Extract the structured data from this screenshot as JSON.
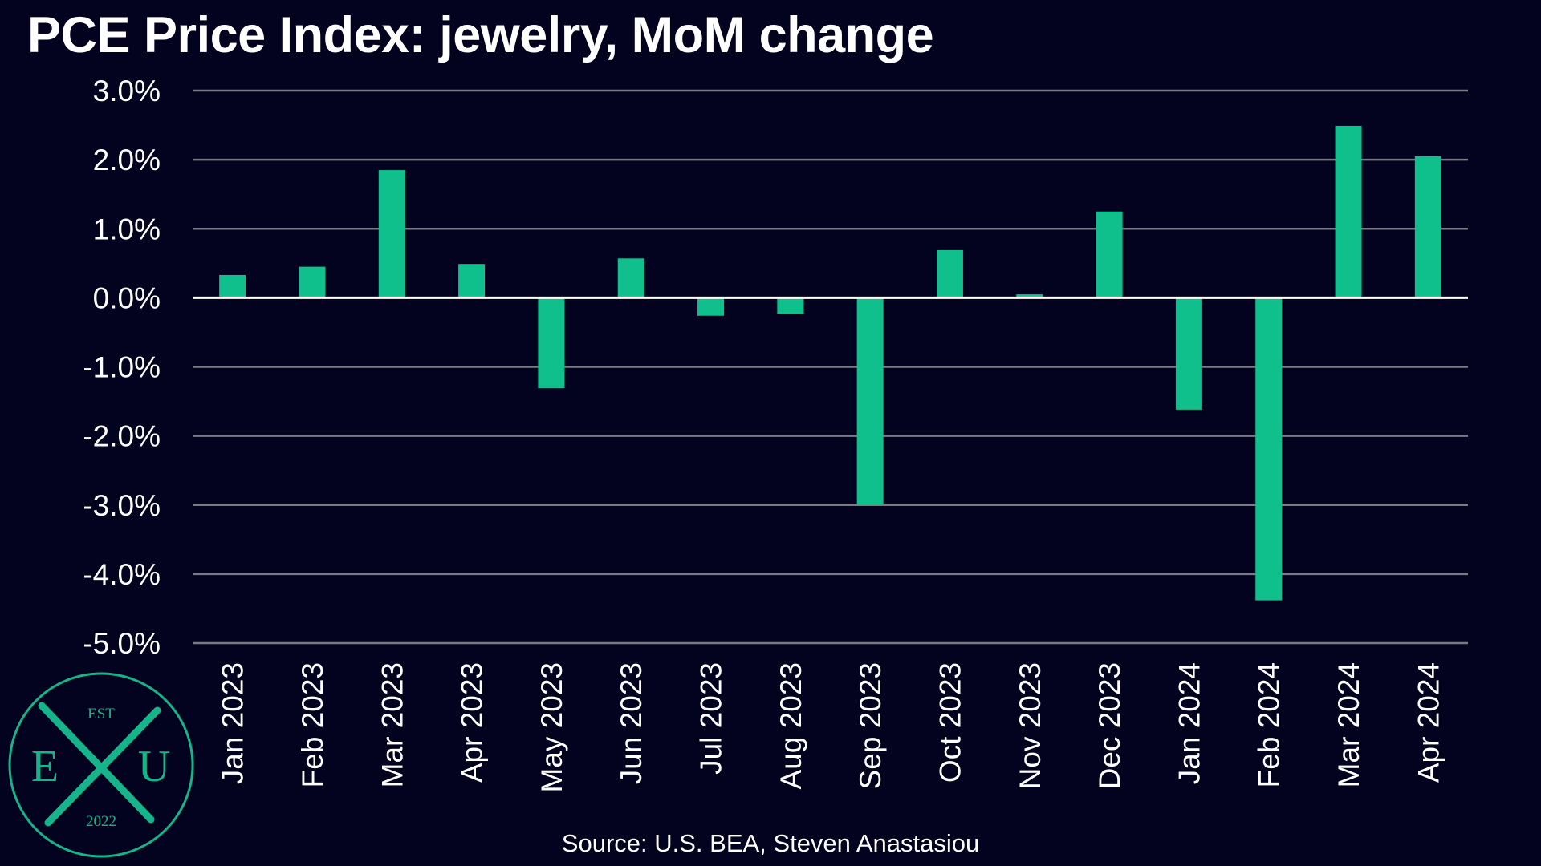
{
  "chart_data": {
    "type": "bar",
    "title": "PCE Price Index: jewelry, MoM change",
    "xlabel": "",
    "ylabel": "",
    "ylim": [
      -5.0,
      3.0
    ],
    "yticks": [
      "3.0%",
      "2.0%",
      "1.0%",
      "0.0%",
      "-1.0%",
      "-2.0%",
      "-3.0%",
      "-4.0%",
      "-5.0%"
    ],
    "ytick_values": [
      3.0,
      2.0,
      1.0,
      0.0,
      -1.0,
      -2.0,
      -3.0,
      -4.0,
      -5.0
    ],
    "categories": [
      "Jan 2023",
      "Feb 2023",
      "Mar 2023",
      "Apr 2023",
      "May 2023",
      "Jun 2023",
      "Jul 2023",
      "Aug 2023",
      "Sep 2023",
      "Oct 2023",
      "Nov 2023",
      "Dec 2023",
      "Jan 2024",
      "Feb 2024",
      "Mar 2024",
      "Apr 2024"
    ],
    "series": [
      {
        "name": "MoM change (%)",
        "values": [
          0.33,
          0.45,
          1.85,
          0.49,
          -1.31,
          0.57,
          -0.26,
          -0.23,
          -3.0,
          0.69,
          0.05,
          1.25,
          -1.62,
          -4.38,
          2.49,
          2.05
        ]
      }
    ],
    "grid": true,
    "legend": "none",
    "colors": {
      "bar": "#0fbf8c",
      "background": "#03021f",
      "grid": "#7a7a86",
      "zero_line": "#ffffff",
      "text": "#ffffff"
    }
  },
  "source_note": "Source: U.S. BEA, Steven Anastasiou",
  "logo": {
    "top_text": "EST",
    "left_letter": "E",
    "right_letter": "U",
    "bottom_text": "2022",
    "color": "#16b48a"
  }
}
